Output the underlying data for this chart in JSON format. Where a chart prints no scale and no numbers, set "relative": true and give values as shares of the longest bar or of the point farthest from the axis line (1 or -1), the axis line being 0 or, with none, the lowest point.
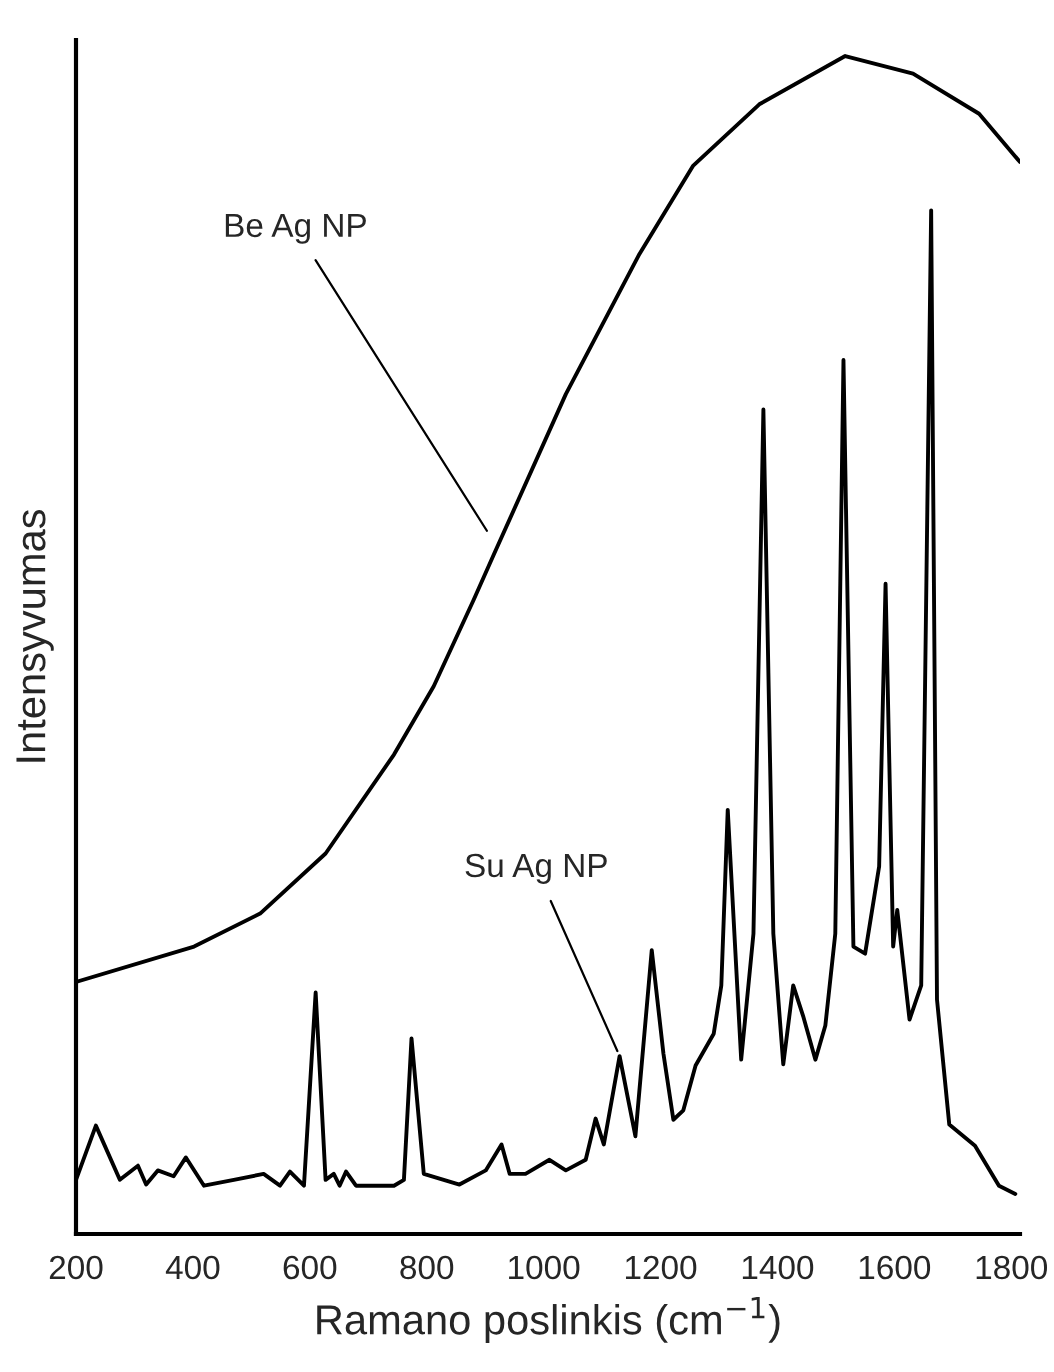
{
  "chart_data": {
    "type": "line",
    "relative": true,
    "xlabel": "Ramano poslinkis (cm$^{−1}$)",
    "ylabel": "Intensyvumas",
    "xlim": [
      200,
      1815
    ],
    "xticks": [
      200,
      400,
      600,
      800,
      1000,
      1200,
      1400,
      1600,
      1800
    ],
    "tick_labels": "x",
    "series": [
      {
        "color": "#000000",
        "x": [
          200,
          402,
          515,
          627,
          744,
          812,
          880,
          915,
          1038,
          1164,
          1256,
          1369,
          1516,
          1632,
          1745,
          1815
        ],
        "values": [
          0.214,
          0.244,
          0.272,
          0.323,
          0.407,
          0.465,
          0.538,
          0.577,
          0.713,
          0.832,
          0.907,
          0.959,
          1.0,
          0.985,
          0.951,
          0.91
        ]
      },
      {
        "color": "#000000",
        "x": [
          200,
          234,
          275,
          306,
          320,
          340,
          367,
          388,
          419,
          470,
          521,
          549,
          566,
          590,
          610,
          627,
          641,
          651,
          662,
          679,
          744,
          761,
          774,
          795,
          856,
          901,
          928,
          942,
          969,
          1010,
          1038,
          1072,
          1089,
          1103,
          1130,
          1157,
          1185,
          1205,
          1222,
          1239,
          1260,
          1291,
          1304,
          1315,
          1338,
          1359,
          1376,
          1393,
          1410,
          1427,
          1444,
          1465,
          1482,
          1499,
          1513,
          1530,
          1550,
          1574,
          1585,
          1598,
          1605,
          1626,
          1646,
          1663,
          1673,
          1694,
          1738,
          1779,
          1807
        ],
        "values": [
          0.046,
          0.092,
          0.046,
          0.058,
          0.042,
          0.054,
          0.049,
          0.065,
          0.041,
          0.046,
          0.051,
          0.041,
          0.053,
          0.041,
          0.205,
          0.046,
          0.051,
          0.041,
          0.053,
          0.041,
          0.041,
          0.046,
          0.166,
          0.051,
          0.042,
          0.054,
          0.076,
          0.051,
          0.051,
          0.063,
          0.054,
          0.063,
          0.098,
          0.076,
          0.151,
          0.083,
          0.241,
          0.153,
          0.097,
          0.105,
          0.143,
          0.17,
          0.211,
          0.36,
          0.148,
          0.255,
          0.7,
          0.255,
          0.144,
          0.211,
          0.185,
          0.148,
          0.177,
          0.255,
          0.742,
          0.244,
          0.238,
          0.312,
          0.552,
          0.244,
          0.275,
          0.182,
          0.211,
          0.869,
          0.199,
          0.093,
          0.075,
          0.041,
          0.034
        ]
      }
    ],
    "annotations": [
      {
        "text": "Be Ag NP",
        "x": 908,
        "y": 0.593
      },
      {
        "text": "Su Ag NP",
        "x": 1130,
        "y": 0.151
      }
    ]
  }
}
